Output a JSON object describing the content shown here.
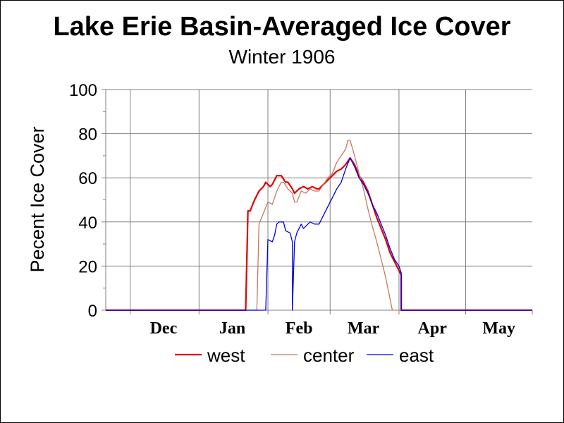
{
  "chart_data": {
    "type": "line",
    "title": "Lake Erie Basin-Averaged Ice Cover",
    "subtitle": "Winter 1906",
    "ylabel": "Pecent Ice Cover",
    "xlabel": "",
    "ylim": [
      0,
      100
    ],
    "yticks": [
      "0",
      "20",
      "40",
      "60",
      "80",
      "100"
    ],
    "xlim": [
      "Nov 20",
      "May 31"
    ],
    "x_tick_labels": [
      {
        "label": "Dec",
        "center": "Dec 16"
      },
      {
        "label": "Jan",
        "center": "Jan 16"
      },
      {
        "label": "Feb",
        "center": "Feb 15"
      },
      {
        "label": "Mar",
        "center": "Mar 16"
      },
      {
        "label": "Apr",
        "center": "Apr 16"
      },
      {
        "label": "May",
        "center": "May 16"
      }
    ],
    "x_gridlines": [
      "Dec 1",
      "Jan 1",
      "Feb 1",
      "Mar 1",
      "Apr 1",
      "May 1"
    ],
    "legend_position": "bottom",
    "colors": {
      "west": "#e00000",
      "center": "#c87860",
      "east": "#0000e0"
    },
    "series": [
      {
        "name": "west",
        "points": [
          [
            "Nov 20",
            0
          ],
          [
            "Jan 22",
            0
          ],
          [
            "Jan 23",
            45
          ],
          [
            "Jan 24",
            45
          ],
          [
            "Jan 26",
            50
          ],
          [
            "Jan 28",
            54
          ],
          [
            "Jan 30",
            56
          ],
          [
            "Jan 31",
            58
          ],
          [
            "Feb 2",
            56
          ],
          [
            "Feb 3",
            57
          ],
          [
            "Feb 5",
            61
          ],
          [
            "Feb 7",
            61
          ],
          [
            "Feb 9",
            58
          ],
          [
            "Feb 10",
            58
          ],
          [
            "Feb 12",
            55
          ],
          [
            "Feb 13",
            53
          ],
          [
            "Feb 15",
            55
          ],
          [
            "Feb 17",
            56
          ],
          [
            "Feb 19",
            55
          ],
          [
            "Feb 21",
            56
          ],
          [
            "Feb 23",
            55
          ],
          [
            "Feb 24",
            55
          ],
          [
            "Feb 26",
            57
          ],
          [
            "Feb 28",
            59
          ],
          [
            "Mar 2",
            61
          ],
          [
            "Mar 4",
            63
          ],
          [
            "Mar 6",
            64
          ],
          [
            "Mar 8",
            66
          ],
          [
            "Mar 10",
            69
          ],
          [
            "Mar 12",
            66
          ],
          [
            "Mar 14",
            61
          ],
          [
            "Mar 16",
            58
          ],
          [
            "Mar 18",
            54
          ],
          [
            "Mar 20",
            48
          ],
          [
            "Mar 22",
            42
          ],
          [
            "Mar 24",
            37
          ],
          [
            "Mar 26",
            32
          ],
          [
            "Mar 28",
            26
          ],
          [
            "Mar 30",
            22
          ],
          [
            "Apr 1",
            18
          ],
          [
            "Apr 2",
            16
          ],
          [
            "Apr 2",
            0
          ],
          [
            "May 31",
            0
          ]
        ]
      },
      {
        "name": "center",
        "points": [
          [
            "Nov 20",
            0
          ],
          [
            "Jan 27",
            0
          ],
          [
            "Jan 28",
            39
          ],
          [
            "Jan 30",
            44
          ],
          [
            "Feb 1",
            49
          ],
          [
            "Feb 3",
            48
          ],
          [
            "Feb 5",
            54
          ],
          [
            "Feb 7",
            58
          ],
          [
            "Feb 8",
            58
          ],
          [
            "Feb 10",
            55
          ],
          [
            "Feb 12",
            53
          ],
          [
            "Feb 13",
            49
          ],
          [
            "Feb 14",
            49
          ],
          [
            "Feb 16",
            54
          ],
          [
            "Feb 18",
            53
          ],
          [
            "Feb 20",
            55
          ],
          [
            "Feb 22",
            54
          ],
          [
            "Feb 24",
            54
          ],
          [
            "Feb 26",
            57
          ],
          [
            "Feb 28",
            60
          ],
          [
            "Mar 2",
            62
          ],
          [
            "Mar 4",
            67
          ],
          [
            "Mar 6",
            70
          ],
          [
            "Mar 8",
            73
          ],
          [
            "Mar 9",
            77
          ],
          [
            "Mar 10",
            77
          ],
          [
            "Mar 12",
            70
          ],
          [
            "Mar 14",
            62
          ],
          [
            "Mar 16",
            55
          ],
          [
            "Mar 18",
            46
          ],
          [
            "Mar 20",
            38
          ],
          [
            "Mar 22",
            31
          ],
          [
            "Mar 24",
            23
          ],
          [
            "Mar 26",
            15
          ],
          [
            "Mar 28",
            5
          ],
          [
            "Mar 29",
            0
          ],
          [
            "May 31",
            0
          ]
        ]
      },
      {
        "name": "east",
        "points": [
          [
            "Nov 20",
            0
          ],
          [
            "Jan 31",
            0
          ],
          [
            "Feb 1",
            32
          ],
          [
            "Feb 3",
            31
          ],
          [
            "Feb 4",
            34
          ],
          [
            "Feb 5",
            39
          ],
          [
            "Feb 6",
            40
          ],
          [
            "Feb 8",
            40
          ],
          [
            "Feb 9",
            36
          ],
          [
            "Feb 11",
            35
          ],
          [
            "Feb 12",
            31
          ],
          [
            "Feb 12",
            0
          ],
          [
            "Feb 13",
            31
          ],
          [
            "Feb 14",
            35
          ],
          [
            "Feb 16",
            39
          ],
          [
            "Feb 17",
            37
          ],
          [
            "Feb 19",
            39
          ],
          [
            "Feb 20",
            40
          ],
          [
            "Feb 22",
            39
          ],
          [
            "Feb 24",
            39
          ],
          [
            "Feb 26",
            43
          ],
          [
            "Feb 28",
            47
          ],
          [
            "Mar 2",
            51
          ],
          [
            "Mar 4",
            55
          ],
          [
            "Mar 6",
            58
          ],
          [
            "Mar 8",
            64
          ],
          [
            "Mar 10",
            69
          ],
          [
            "Mar 12",
            65
          ],
          [
            "Mar 14",
            60
          ],
          [
            "Mar 16",
            57
          ],
          [
            "Mar 18",
            53
          ],
          [
            "Mar 20",
            48
          ],
          [
            "Mar 22",
            44
          ],
          [
            "Mar 24",
            39
          ],
          [
            "Mar 26",
            34
          ],
          [
            "Mar 28",
            28
          ],
          [
            "Mar 30",
            23
          ],
          [
            "Apr 1",
            20
          ],
          [
            "Apr 2",
            17
          ],
          [
            "Apr 2",
            0
          ],
          [
            "May 31",
            0
          ]
        ]
      }
    ]
  }
}
